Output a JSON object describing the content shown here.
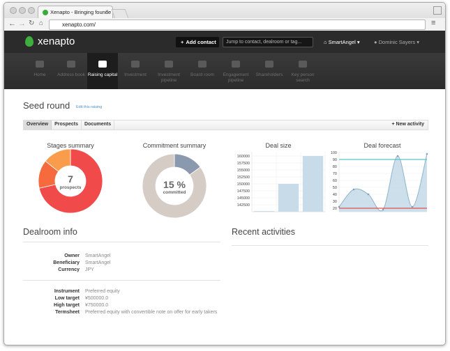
{
  "browser": {
    "tab_title": "Xenapto - Bringing founde",
    "url": "xenapto.com/"
  },
  "header": {
    "logo": "xenapto",
    "add_contact": "Add contact",
    "search_placeholder": "Jump to contact, dealroom or tag...",
    "account": "SmartAngel",
    "user": "Dominic Sayers"
  },
  "nav": [
    "Home",
    "Address book",
    "Raising capital",
    "Investment",
    "Investment pipeline",
    "Board room",
    "Engagement pipeline",
    "Shareholders",
    "Key person search"
  ],
  "nav_active": 2,
  "page": {
    "title": "Seed round",
    "edit_link": "Edit this raising",
    "tabs": [
      "Overview",
      "Prospects",
      "Documents"
    ],
    "new_activity": "New activity"
  },
  "chart_data": [
    {
      "type": "pie",
      "title": "Stages summary",
      "values": [
        5,
        1,
        1
      ],
      "colors": [
        "#f04a4a",
        "#f56b3d",
        "#f99c4b"
      ],
      "center_value": 7,
      "center_label": "prospects"
    },
    {
      "type": "pie",
      "title": "Commitment summary",
      "values": [
        15,
        85
      ],
      "value_labels": [
        "15 %",
        null
      ],
      "colors": [
        "#8a99ad",
        "#d6ccc6"
      ],
      "center_label": "committed"
    },
    {
      "type": "bar",
      "title": "Deal size",
      "categories": [
        null,
        null,
        null
      ],
      "values": [
        140250,
        150000,
        160000
      ],
      "color": "#c7dbe8",
      "ylim": [
        140000,
        161500
      ],
      "yticks": [
        142500,
        145000,
        147500,
        150000,
        152500,
        155000,
        157500,
        160000
      ],
      "grid": true
    },
    {
      "type": "line",
      "title": "Deal forecast",
      "categories": [
        null,
        null,
        null,
        null,
        null,
        null,
        null
      ],
      "values": [
        22,
        47,
        40,
        18,
        95,
        22,
        98
      ],
      "color": "#8fb3cb",
      "fill": "#c7dbe8",
      "ylim": [
        15,
        101
      ],
      "yticks": [
        20,
        30,
        40,
        50,
        60,
        70,
        80,
        90,
        100
      ],
      "reference_lines": [
        {
          "value": 90,
          "color": "#5cc3cb"
        },
        {
          "value": 20,
          "color": "#e05050"
        }
      ],
      "grid": true
    }
  ],
  "dealroom_info": {
    "title": "Dealroom info",
    "groups": [
      [
        {
          "label": "Owner",
          "value": "SmartAngel"
        },
        {
          "label": "Beneficiary",
          "value": "SmartAngel"
        },
        {
          "label": "Currency",
          "value": "JPY"
        }
      ],
      [
        {
          "label": "Instrument",
          "value": "Preferred equity"
        },
        {
          "label": "Low target",
          "value": "¥500000.0"
        },
        {
          "label": "High target",
          "value": "¥750000.0"
        },
        {
          "label": "Termsheet",
          "value": "Preferred equity with convertible note on offer for early takers"
        }
      ]
    ]
  },
  "recent_activities": {
    "title": "Recent activities"
  }
}
